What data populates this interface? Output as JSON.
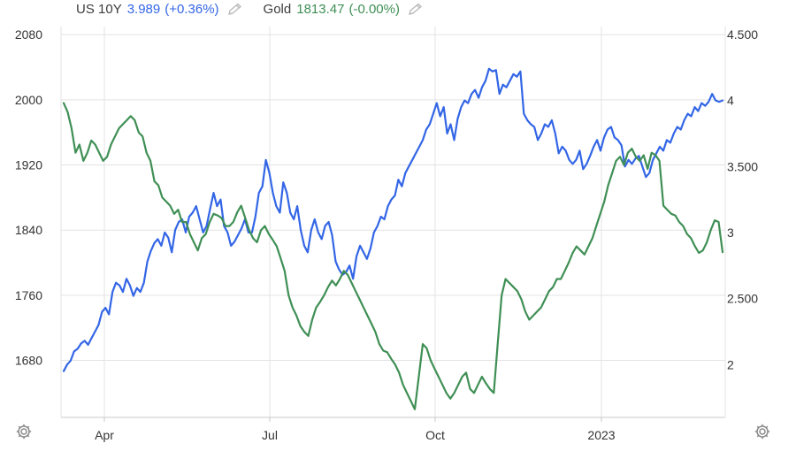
{
  "legend": [
    {
      "name": "US 10Y",
      "value": "3.989",
      "change": "(+0.36%)",
      "color": "#3366e6",
      "icon": "pencil-icon"
    },
    {
      "name": "Gold",
      "value": "1813.47",
      "change": "(-0.00%)",
      "color": "#3f8f55",
      "icon": "pencil-icon"
    }
  ],
  "chart_data": {
    "type": "line",
    "x_tick_labels": [
      "Apr",
      "Jul",
      "Oct",
      "2023"
    ],
    "left_axis": {
      "ticks": [
        "2080",
        "2000",
        "1920",
        "1840",
        "1760",
        "1680"
      ],
      "range": [
        1610,
        2090
      ]
    },
    "right_axis": {
      "ticks": [
        "4.500",
        "4",
        "3.500",
        "3",
        "2.500",
        "2"
      ],
      "range": [
        1.6,
        4.56
      ]
    },
    "grid": true,
    "series": [
      {
        "name": "US 10Y",
        "axis": "right",
        "color": "#3366e6",
        "values": [
          1.95,
          2.0,
          2.03,
          2.1,
          2.12,
          2.16,
          2.18,
          2.15,
          2.2,
          2.25,
          2.3,
          2.4,
          2.43,
          2.38,
          2.55,
          2.62,
          2.6,
          2.55,
          2.65,
          2.6,
          2.52,
          2.58,
          2.55,
          2.62,
          2.78,
          2.86,
          2.92,
          2.95,
          2.9,
          3.0,
          2.96,
          2.85,
          3.02,
          3.08,
          3.1,
          3.0,
          3.12,
          3.15,
          3.2,
          3.1,
          3.0,
          3.05,
          3.18,
          3.3,
          3.2,
          3.25,
          3.05,
          3.0,
          2.9,
          2.93,
          2.98,
          3.03,
          3.1,
          3.0,
          3.0,
          3.12,
          3.3,
          3.35,
          3.55,
          3.45,
          3.3,
          3.2,
          3.15,
          3.38,
          3.3,
          3.15,
          3.1,
          3.2,
          3.02,
          2.9,
          2.85,
          3.02,
          3.1,
          3.0,
          2.95,
          3.05,
          3.08,
          2.98,
          2.78,
          2.72,
          2.68,
          2.7,
          2.75,
          2.65,
          2.82,
          2.9,
          2.85,
          2.8,
          2.88,
          3.0,
          3.05,
          3.12,
          3.1,
          3.2,
          3.25,
          3.28,
          3.4,
          3.35,
          3.45,
          3.5,
          3.55,
          3.6,
          3.65,
          3.7,
          3.78,
          3.82,
          3.9,
          3.98,
          3.88,
          3.95,
          3.75,
          3.82,
          3.7,
          3.86,
          3.95,
          4.0,
          3.98,
          4.05,
          4.08,
          4.02,
          4.1,
          4.15,
          4.24,
          4.22,
          4.23,
          4.05,
          4.12,
          4.1,
          4.15,
          4.2,
          4.18,
          4.22,
          3.9,
          3.85,
          3.82,
          3.8,
          3.7,
          3.75,
          3.82,
          3.8,
          3.85,
          3.75,
          3.6,
          3.65,
          3.62,
          3.55,
          3.52,
          3.55,
          3.62,
          3.48,
          3.52,
          3.58,
          3.65,
          3.7,
          3.62,
          3.72,
          3.78,
          3.8,
          3.72,
          3.7,
          3.66,
          3.5,
          3.55,
          3.52,
          3.56,
          3.58,
          3.5,
          3.42,
          3.45,
          3.55,
          3.6,
          3.65,
          3.62,
          3.7,
          3.68,
          3.75,
          3.8,
          3.78,
          3.85,
          3.9,
          3.88,
          3.95,
          3.92,
          3.98,
          3.96,
          3.99,
          4.05,
          4.0,
          3.99,
          4.0
        ]
      },
      {
        "name": "Gold",
        "axis": "left",
        "color": "#3f8f55",
        "values": [
          1996,
          1985,
          1965,
          1935,
          1945,
          1925,
          1935,
          1950,
          1945,
          1935,
          1925,
          1930,
          1945,
          1955,
          1965,
          1970,
          1975,
          1980,
          1975,
          1960,
          1955,
          1935,
          1925,
          1900,
          1895,
          1880,
          1875,
          1870,
          1860,
          1865,
          1850,
          1850,
          1835,
          1825,
          1815,
          1830,
          1835,
          1850,
          1860,
          1858,
          1855,
          1845,
          1845,
          1850,
          1862,
          1870,
          1855,
          1840,
          1830,
          1825,
          1840,
          1845,
          1835,
          1828,
          1820,
          1805,
          1790,
          1760,
          1745,
          1735,
          1722,
          1715,
          1710,
          1730,
          1745,
          1752,
          1760,
          1770,
          1778,
          1772,
          1780,
          1790,
          1785,
          1775,
          1765,
          1755,
          1745,
          1735,
          1725,
          1715,
          1700,
          1692,
          1690,
          1682,
          1675,
          1665,
          1650,
          1640,
          1630,
          1620,
          1660,
          1700,
          1695,
          1680,
          1670,
          1660,
          1650,
          1640,
          1633,
          1640,
          1650,
          1660,
          1665,
          1645,
          1640,
          1650,
          1660,
          1652,
          1645,
          1640,
          1700,
          1760,
          1780,
          1775,
          1770,
          1765,
          1755,
          1740,
          1730,
          1735,
          1740,
          1745,
          1755,
          1765,
          1770,
          1780,
          1780,
          1790,
          1800,
          1812,
          1820,
          1815,
          1810,
          1820,
          1830,
          1845,
          1860,
          1875,
          1895,
          1910,
          1925,
          1930,
          1920,
          1935,
          1940,
          1930,
          1925,
          1932,
          1915,
          1935,
          1932,
          1925,
          1870,
          1865,
          1860,
          1858,
          1850,
          1845,
          1835,
          1830,
          1820,
          1812,
          1815,
          1825,
          1840,
          1852,
          1850,
          1813
        ]
      }
    ]
  }
}
